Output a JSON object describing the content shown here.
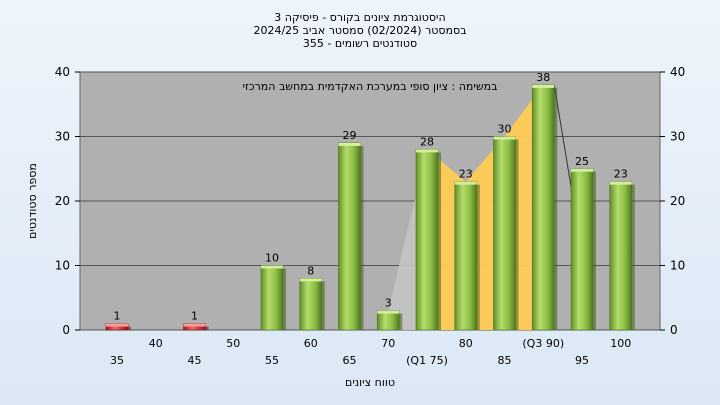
{
  "chart_data": {
    "type": "bar",
    "title_lines": [
      "היסטוגרמת ציונים בקורס - פיסיקה 3",
      "בסמסטר  (02/2024)  סמסטר אביב 2024/25",
      "סטודנטים רשומים - 355"
    ],
    "annotation": "במשימה : ציון סופי במערכת האקדמית במחשב המרכזי",
    "ylabel": "מספר סטודנטים",
    "xlabel": "טווח ציונים",
    "ylim": [
      0,
      40
    ],
    "yticks": [
      0,
      10,
      20,
      30,
      40
    ],
    "x_tick_labels": [
      "35",
      "40",
      "45",
      "50",
      "55",
      "60",
      "65",
      "70",
      "(Q1 75)",
      "80",
      "85",
      "(Q3 90)",
      "95",
      "100"
    ],
    "x_tick_values": [
      35,
      40,
      45,
      50,
      55,
      60,
      65,
      70,
      75,
      80,
      85,
      90,
      95,
      100
    ],
    "bars": [
      {
        "x": 35,
        "value": 1,
        "label": "1",
        "color": "#d9262b"
      },
      {
        "x": 45,
        "value": 1,
        "label": "1",
        "color": "#d9262b"
      },
      {
        "x": 55,
        "value": 10,
        "label": "10",
        "color": "#8bc34a"
      },
      {
        "x": 60,
        "value": 8,
        "label": "8",
        "color": "#8bc34a"
      },
      {
        "x": 65,
        "value": 29,
        "label": "29",
        "color": "#8bc34a"
      },
      {
        "x": 70,
        "value": 3,
        "label": "3",
        "color": "#8bc34a"
      },
      {
        "x": 75,
        "value": 28,
        "label": "28",
        "color": "#8bc34a"
      },
      {
        "x": 80,
        "value": 23,
        "label": "23",
        "color": "#8bc34a"
      },
      {
        "x": 85,
        "value": 30,
        "label": "30",
        "color": "#8bc34a"
      },
      {
        "x": 90,
        "value": 38,
        "label": "38",
        "color": "#8bc34a"
      },
      {
        "x": 95,
        "value": 25,
        "label": "25",
        "color": "#8bc34a"
      },
      {
        "x": 100,
        "value": 23,
        "label": "23",
        "color": "#8bc34a"
      }
    ],
    "iqr_band": {
      "x_start": 75,
      "x_end": 90,
      "color": "#ffcc55"
    },
    "grid": true,
    "colors": {
      "plot_bg": "#b0b0b0",
      "fail_bar": "#d9262b",
      "pass_bar": "#8bc34a",
      "band": "#ffcc55"
    }
  }
}
